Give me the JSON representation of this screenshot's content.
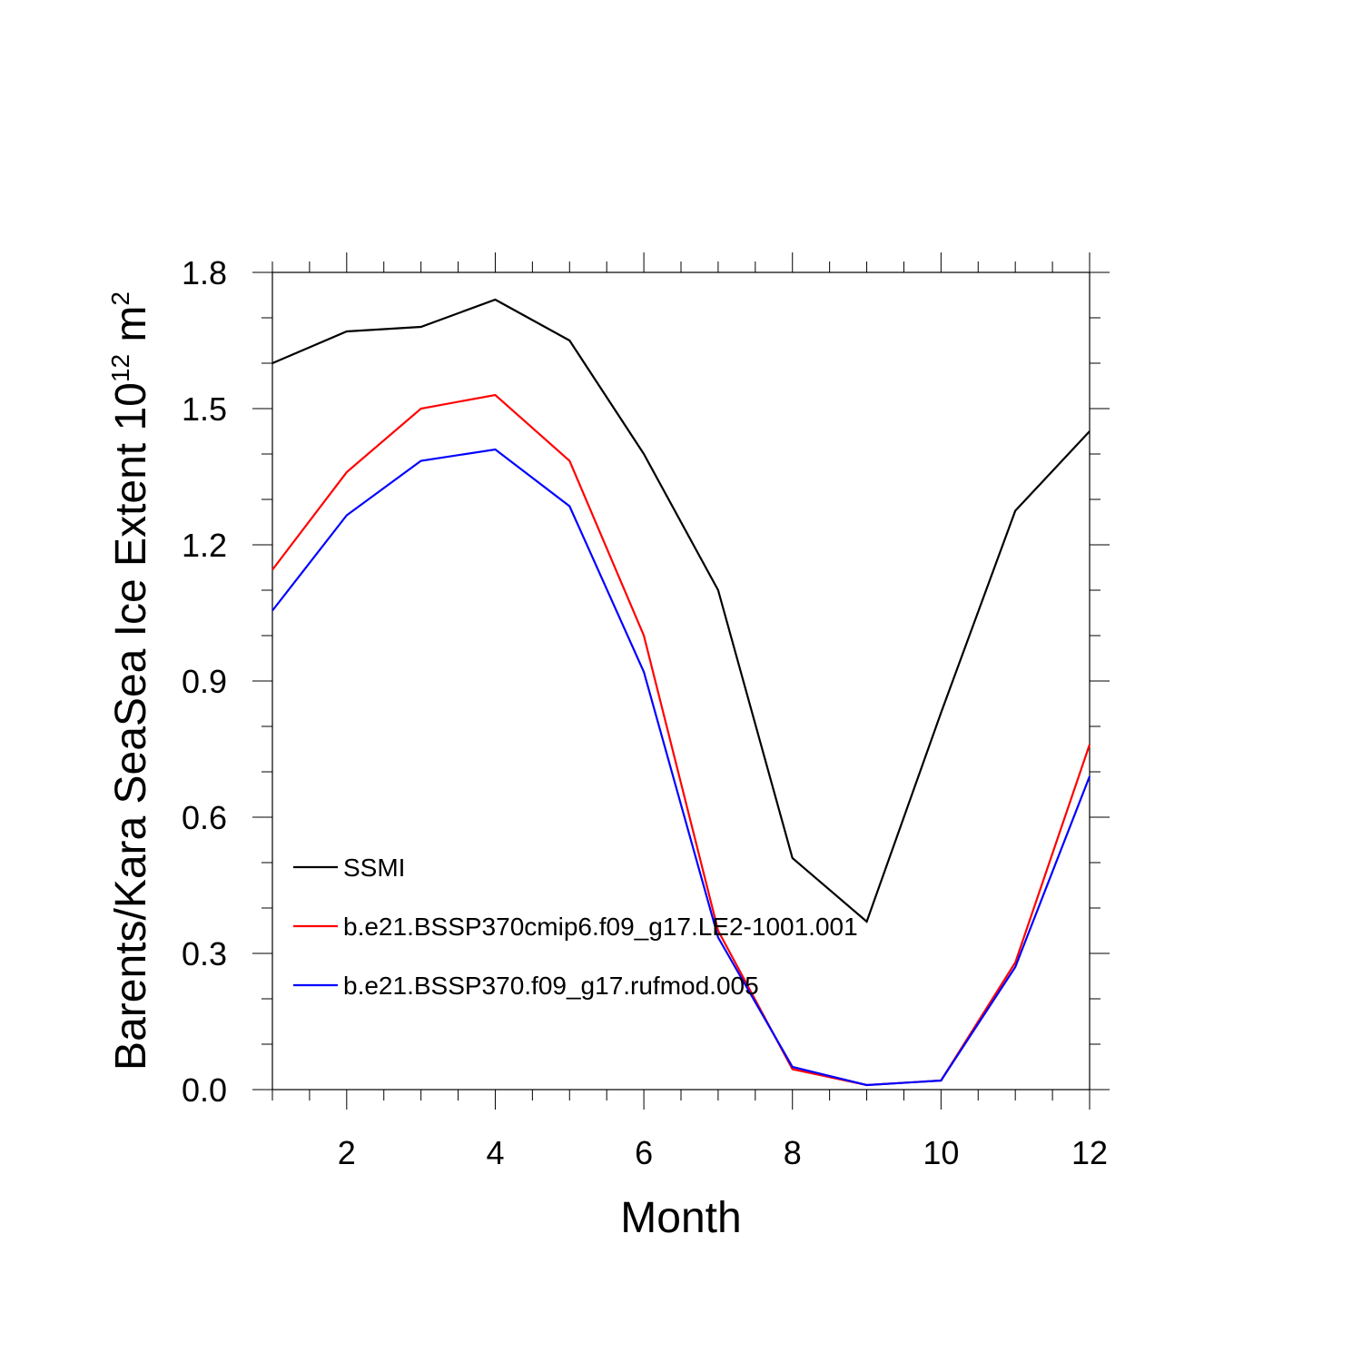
{
  "chart_data": {
    "type": "line",
    "xlabel": "Month",
    "ylabel": "Barents/Kara SeaSea Ice Extent 10",
    "ylabel_exponent": "12",
    "ylabel_unit": " m",
    "ylabel_unit_exponent": "2",
    "xlim": [
      1,
      12
    ],
    "ylim": [
      0,
      1.8
    ],
    "x_ticks": [
      2,
      4,
      6,
      8,
      10,
      12
    ],
    "x_tick_labels": [
      "2",
      "4",
      "6",
      "8",
      "10",
      "12"
    ],
    "y_ticks": [
      0,
      0.3,
      0.6,
      0.9,
      1.2,
      1.5,
      1.8
    ],
    "y_tick_labels": [
      "0.0",
      "0.3",
      "0.6",
      "0.9",
      "1.2",
      "1.5",
      "1.8"
    ],
    "grid": false,
    "legend_position": "lower-left",
    "x": [
      1,
      2,
      3,
      4,
      5,
      6,
      7,
      8,
      9,
      10,
      11,
      12
    ],
    "series": [
      {
        "name": "SSMI",
        "color": "#000000",
        "values": [
          1.6,
          1.67,
          1.68,
          1.74,
          1.65,
          1.4,
          1.1,
          0.51,
          0.37,
          0.83,
          1.275,
          1.45
        ]
      },
      {
        "name": "b.e21.BSSP370cmip6.f09_g17.LE2-1001.001",
        "color": "#ff0000",
        "values": [
          1.145,
          1.36,
          1.5,
          1.53,
          1.385,
          1.0,
          0.35,
          0.045,
          0.01,
          0.02,
          0.28,
          0.76
        ]
      },
      {
        "name": "b.e21.BSSP370.f09_g17.rufmod.005",
        "color": "#0000ff",
        "values": [
          1.055,
          1.265,
          1.385,
          1.41,
          1.285,
          0.92,
          0.335,
          0.05,
          0.01,
          0.02,
          0.27,
          0.69
        ]
      }
    ]
  }
}
